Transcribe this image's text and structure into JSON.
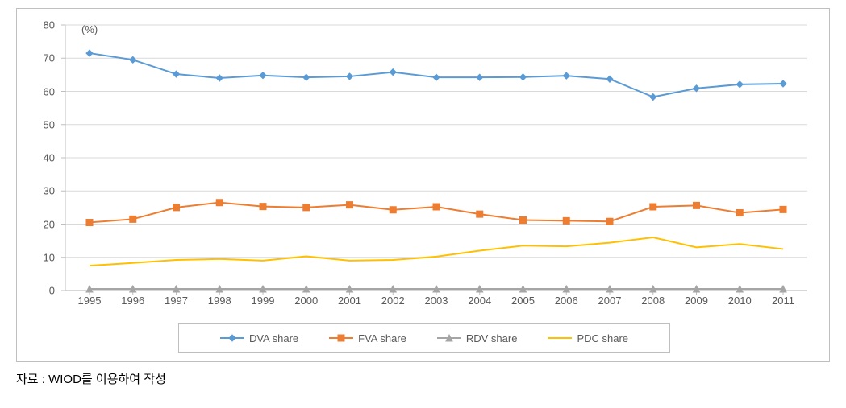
{
  "chart": {
    "type": "line",
    "unit_label": "(%)",
    "background_color": "#ffffff",
    "border_color": "#bfbfbf",
    "grid_color": "#d9d9d9",
    "axis_color": "#bfbfbf",
    "text_color": "#595959",
    "tick_fontsize": 13,
    "ylim": [
      0,
      80
    ],
    "ytick_step": 10,
    "yticks": [
      0,
      10,
      20,
      30,
      40,
      50,
      60,
      70,
      80
    ],
    "categories": [
      "1995",
      "1996",
      "1997",
      "1998",
      "1999",
      "2000",
      "2001",
      "2002",
      "2003",
      "2004",
      "2005",
      "2006",
      "2007",
      "2008",
      "2009",
      "2010",
      "2011"
    ],
    "series": [
      {
        "name": "DVA share",
        "color": "#5b9bd5",
        "marker": "diamond",
        "line_width": 2,
        "data": [
          71.5,
          69.5,
          65.2,
          64.0,
          64.8,
          64.2,
          64.5,
          65.8,
          64.2,
          64.2,
          64.3,
          64.7,
          63.7,
          58.3,
          60.9,
          62.1,
          62.3
        ]
      },
      {
        "name": "FVA share",
        "color": "#ed7d31",
        "marker": "square",
        "line_width": 2,
        "data": [
          20.5,
          21.5,
          25.0,
          26.5,
          25.3,
          25.0,
          25.8,
          24.3,
          25.2,
          23.0,
          21.2,
          21.0,
          20.8,
          25.2,
          25.6,
          23.4,
          24.4
        ]
      },
      {
        "name": "RDV share",
        "color": "#a5a5a5",
        "marker": "triangle",
        "line_width": 2,
        "data": [
          0.5,
          0.5,
          0.5,
          0.5,
          0.5,
          0.5,
          0.5,
          0.5,
          0.5,
          0.5,
          0.5,
          0.5,
          0.5,
          0.5,
          0.5,
          0.5,
          0.5
        ]
      },
      {
        "name": "PDC share",
        "color": "#ffc000",
        "marker": "none",
        "line_width": 2,
        "data": [
          7.5,
          8.3,
          9.2,
          9.5,
          9.0,
          10.3,
          9.0,
          9.2,
          10.2,
          12.0,
          13.5,
          13.3,
          14.4,
          16.0,
          13.0,
          14.0,
          12.5
        ]
      }
    ],
    "legend_items": [
      {
        "label": "DVA share",
        "color": "#5b9bd5",
        "marker": "diamond"
      },
      {
        "label": "FVA share",
        "color": "#ed7d31",
        "marker": "square"
      },
      {
        "label": "RDV share",
        "color": "#a5a5a5",
        "marker": "triangle"
      },
      {
        "label": "PDC share",
        "color": "#ffc000",
        "marker": "none"
      }
    ]
  },
  "source_note": "자료 : WIOD를 이용하여 작성"
}
